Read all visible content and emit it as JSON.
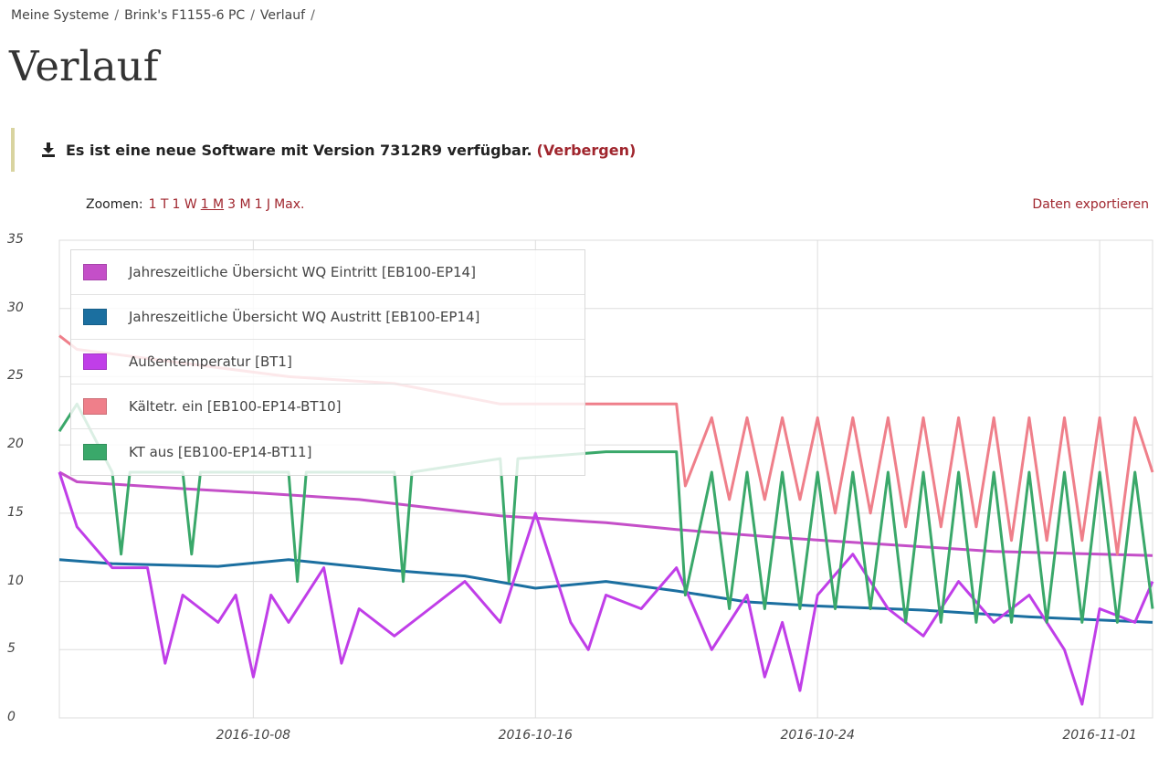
{
  "breadcrumb": {
    "items": [
      "Meine Systeme",
      "Brink's F1155-6 PC",
      "Verlauf"
    ],
    "separator": "/"
  },
  "page_title": "Verlauf",
  "notice": {
    "icon": "download-icon",
    "message": "Es ist eine neue Software mit Version 7312R9 verfügbar.",
    "hide_link": "(Verbergen)"
  },
  "zoom": {
    "label": "Zoomen:",
    "options": [
      "1 T",
      "1 W",
      "1 M",
      "3 M",
      "1 J",
      "Max."
    ],
    "active": "1 M"
  },
  "export_label": "Daten exportieren",
  "colors": {
    "link": "#a0262e",
    "grid": "#dddddd"
  },
  "chart_data": {
    "type": "line",
    "y_ticks": [
      "35",
      "30",
      "25",
      "20",
      "15",
      "10",
      "5",
      "0"
    ],
    "x_ticks": [
      "2016-10-08",
      "2016-10-16",
      "2016-10-24",
      "2016-11-01"
    ],
    "ylim": [
      0,
      35
    ],
    "xlim": [
      "2016-10-02 12:00",
      "2016-11-02 12:00"
    ],
    "grid": true,
    "legend_position": "top-left",
    "series": [
      {
        "name": "Jahreszeitliche Übersicht WQ Eintritt [EB100-EP14]",
        "color": "#c44fc8",
        "points": [
          [
            "2016-10-02 12:00",
            18
          ],
          [
            "2016-10-03",
            17.3
          ],
          [
            "2016-10-06",
            16.8
          ],
          [
            "2016-10-08",
            16.5
          ],
          [
            "2016-10-11",
            16.0
          ],
          [
            "2016-10-13",
            15.4
          ],
          [
            "2016-10-15",
            14.8
          ],
          [
            "2016-10-18",
            14.3
          ],
          [
            "2016-10-20",
            13.8
          ],
          [
            "2016-10-23",
            13.2
          ],
          [
            "2016-10-26",
            12.7
          ],
          [
            "2016-10-29",
            12.2
          ],
          [
            "2016-11-02 12:00",
            11.9
          ]
        ]
      },
      {
        "name": "Jahreszeitliche Übersicht WQ Austritt [EB100-EP14]",
        "color": "#1b6fa0",
        "points": [
          [
            "2016-10-02 12:00",
            11.6
          ],
          [
            "2016-10-04",
            11.3
          ],
          [
            "2016-10-07",
            11.1
          ],
          [
            "2016-10-09",
            11.6
          ],
          [
            "2016-10-12",
            10.8
          ],
          [
            "2016-10-14",
            10.4
          ],
          [
            "2016-10-16",
            9.5
          ],
          [
            "2016-10-18",
            10.0
          ],
          [
            "2016-10-20",
            9.3
          ],
          [
            "2016-10-22",
            8.5
          ],
          [
            "2016-10-24",
            8.2
          ],
          [
            "2016-10-27",
            7.9
          ],
          [
            "2016-10-30",
            7.4
          ],
          [
            "2016-11-02 12:00",
            7.0
          ]
        ]
      },
      {
        "name": "Außentemperatur [BT1]",
        "color": "#c03ee8",
        "points": [
          [
            "2016-10-02 12:00",
            18
          ],
          [
            "2016-10-03",
            14
          ],
          [
            "2016-10-04",
            11
          ],
          [
            "2016-10-05",
            11
          ],
          [
            "2016-10-05 12:00",
            4
          ],
          [
            "2016-10-06",
            9
          ],
          [
            "2016-10-07",
            7
          ],
          [
            "2016-10-07 12:00",
            9
          ],
          [
            "2016-10-08",
            3
          ],
          [
            "2016-10-08 12:00",
            9
          ],
          [
            "2016-10-09",
            7
          ],
          [
            "2016-10-10",
            11
          ],
          [
            "2016-10-10 12:00",
            4
          ],
          [
            "2016-10-11",
            8
          ],
          [
            "2016-10-12",
            6
          ],
          [
            "2016-10-13",
            8
          ],
          [
            "2016-10-14",
            10
          ],
          [
            "2016-10-15",
            7
          ],
          [
            "2016-10-16",
            15
          ],
          [
            "2016-10-17",
            7
          ],
          [
            "2016-10-17 12:00",
            5
          ],
          [
            "2016-10-18",
            9
          ],
          [
            "2016-10-19",
            8
          ],
          [
            "2016-10-20",
            11
          ],
          [
            "2016-10-21",
            5
          ],
          [
            "2016-10-22",
            9
          ],
          [
            "2016-10-22 12:00",
            3
          ],
          [
            "2016-10-23",
            7
          ],
          [
            "2016-10-23 12:00",
            2
          ],
          [
            "2016-10-24",
            9
          ],
          [
            "2016-10-25",
            12
          ],
          [
            "2016-10-26",
            8
          ],
          [
            "2016-10-27",
            6
          ],
          [
            "2016-10-28",
            10
          ],
          [
            "2016-10-29",
            7
          ],
          [
            "2016-10-30",
            9
          ],
          [
            "2016-10-31",
            5
          ],
          [
            "2016-10-31 12:00",
            1
          ],
          [
            "2016-11-01",
            8
          ],
          [
            "2016-11-02",
            7
          ],
          [
            "2016-11-02 12:00",
            10
          ]
        ]
      },
      {
        "name": "Kältetr. ein [EB100-EP14-BT10]",
        "color": "#ef7f8a",
        "points": [
          [
            "2016-10-02 12:00",
            28
          ],
          [
            "2016-10-03",
            27
          ],
          [
            "2016-10-06",
            26
          ],
          [
            "2016-10-09",
            25
          ],
          [
            "2016-10-12",
            24.5
          ],
          [
            "2016-10-15",
            23
          ],
          [
            "2016-10-18",
            23
          ],
          [
            "2016-10-20",
            23
          ],
          [
            "2016-10-20 06:00",
            17
          ],
          [
            "2016-10-21",
            22
          ],
          [
            "2016-10-21 12:00",
            16
          ],
          [
            "2016-10-22",
            22
          ],
          [
            "2016-10-22 12:00",
            16
          ],
          [
            "2016-10-23",
            22
          ],
          [
            "2016-10-23 12:00",
            16
          ],
          [
            "2016-10-24",
            22
          ],
          [
            "2016-10-24 12:00",
            15
          ],
          [
            "2016-10-25",
            22
          ],
          [
            "2016-10-25 12:00",
            15
          ],
          [
            "2016-10-26",
            22
          ],
          [
            "2016-10-26 12:00",
            14
          ],
          [
            "2016-10-27",
            22
          ],
          [
            "2016-10-27 12:00",
            14
          ],
          [
            "2016-10-28",
            22
          ],
          [
            "2016-10-28 12:00",
            14
          ],
          [
            "2016-10-29",
            22
          ],
          [
            "2016-10-29 12:00",
            13
          ],
          [
            "2016-10-30",
            22
          ],
          [
            "2016-10-30 12:00",
            13
          ],
          [
            "2016-10-31",
            22
          ],
          [
            "2016-10-31 12:00",
            13
          ],
          [
            "2016-11-01",
            22
          ],
          [
            "2016-11-01 12:00",
            12
          ],
          [
            "2016-11-02",
            22
          ],
          [
            "2016-11-02 12:00",
            18
          ]
        ]
      },
      {
        "name": "KT aus [EB100-EP14-BT11]",
        "color": "#3aa86a",
        "points": [
          [
            "2016-10-02 12:00",
            21
          ],
          [
            "2016-10-03",
            23
          ],
          [
            "2016-10-04",
            18
          ],
          [
            "2016-10-04 06:00",
            12
          ],
          [
            "2016-10-04 12:00",
            18
          ],
          [
            "2016-10-06",
            18
          ],
          [
            "2016-10-06 06:00",
            12
          ],
          [
            "2016-10-06 12:00",
            18
          ],
          [
            "2016-10-09",
            18
          ],
          [
            "2016-10-09 06:00",
            10
          ],
          [
            "2016-10-09 12:00",
            18
          ],
          [
            "2016-10-12",
            18
          ],
          [
            "2016-10-12 06:00",
            10
          ],
          [
            "2016-10-12 12:00",
            18
          ],
          [
            "2016-10-15",
            19
          ],
          [
            "2016-10-15 06:00",
            10
          ],
          [
            "2016-10-15 12:00",
            19
          ],
          [
            "2016-10-18",
            19.5
          ],
          [
            "2016-10-20",
            19.5
          ],
          [
            "2016-10-20 06:00",
            9
          ],
          [
            "2016-10-21",
            18
          ],
          [
            "2016-10-21 12:00",
            8
          ],
          [
            "2016-10-22",
            18
          ],
          [
            "2016-10-22 12:00",
            8
          ],
          [
            "2016-10-23",
            18
          ],
          [
            "2016-10-23 12:00",
            8
          ],
          [
            "2016-10-24",
            18
          ],
          [
            "2016-10-24 12:00",
            8
          ],
          [
            "2016-10-25",
            18
          ],
          [
            "2016-10-25 12:00",
            8
          ],
          [
            "2016-10-26",
            18
          ],
          [
            "2016-10-26 12:00",
            7
          ],
          [
            "2016-10-27",
            18
          ],
          [
            "2016-10-27 12:00",
            7
          ],
          [
            "2016-10-28",
            18
          ],
          [
            "2016-10-28 12:00",
            7
          ],
          [
            "2016-10-29",
            18
          ],
          [
            "2016-10-29 12:00",
            7
          ],
          [
            "2016-10-30",
            18
          ],
          [
            "2016-10-30 12:00",
            7
          ],
          [
            "2016-10-31",
            18
          ],
          [
            "2016-10-31 12:00",
            7
          ],
          [
            "2016-11-01",
            18
          ],
          [
            "2016-11-01 12:00",
            7
          ],
          [
            "2016-11-02",
            18
          ],
          [
            "2016-11-02 12:00",
            8
          ]
        ]
      }
    ]
  }
}
